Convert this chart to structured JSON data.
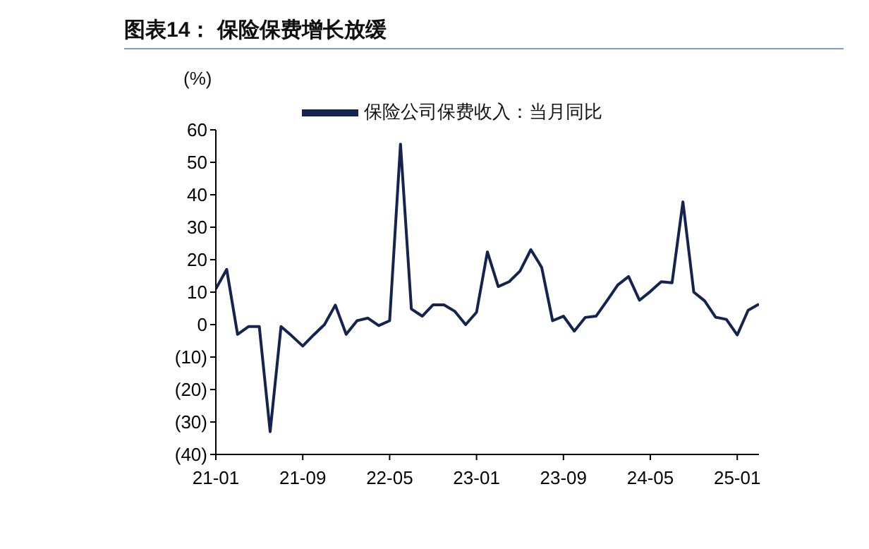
{
  "chart_data": {
    "type": "line",
    "title": "图表14：  保险保费增长放缓",
    "ylabel": "(%)",
    "categories": [
      "21-01",
      null,
      null,
      null,
      null,
      null,
      null,
      null,
      "21-09",
      null,
      null,
      null,
      null,
      null,
      null,
      null,
      "22-05",
      null,
      null,
      null,
      null,
      null,
      null,
      null,
      "23-01",
      null,
      null,
      null,
      null,
      null,
      null,
      null,
      "23-09",
      null,
      null,
      null,
      null,
      null,
      null,
      null,
      "24-05",
      null,
      null,
      null,
      null,
      null,
      null,
      null,
      "25-01",
      null,
      null
    ],
    "series": [
      {
        "name": "保险公司保费收入：当月同比",
        "color": "#14244f",
        "values": [
          11,
          17,
          -3,
          -0.6,
          -0.6,
          -33,
          -0.6,
          -3.5,
          -6.6,
          -3.2,
          0,
          6,
          -3,
          1.2,
          2,
          -0.3,
          1.2,
          55.6,
          4.8,
          2.6,
          6.1,
          6.1,
          4.1,
          0,
          3.8,
          22.4,
          11.7,
          13.2,
          16.5,
          23.1,
          17.6,
          1.2,
          2.6,
          -2,
          2.2,
          2.6,
          7.3,
          12.2,
          14.8,
          7.5,
          10.2,
          13.2,
          12.9,
          37.8,
          10,
          7.3,
          2.3,
          1.6,
          -3.2,
          4.4,
          6.3
        ]
      }
    ],
    "ylim": [
      -40,
      60
    ],
    "yticks": [
      {
        "value": -40,
        "label": "(40)"
      },
      {
        "value": -30,
        "label": "(30)"
      },
      {
        "value": -20,
        "label": "(20)"
      },
      {
        "value": -10,
        "label": "(10)"
      },
      0,
      10,
      20,
      30,
      40,
      50,
      60
    ],
    "legend": "top",
    "grid": false,
    "marker": "none",
    "line_style": "solid"
  }
}
